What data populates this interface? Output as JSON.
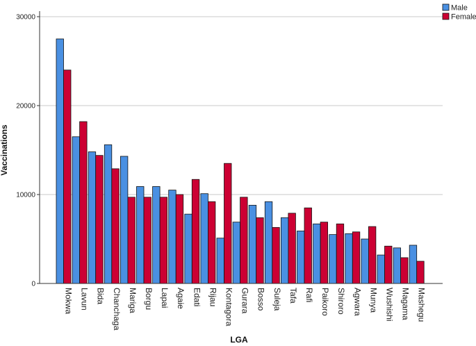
{
  "chart_data": {
    "type": "bar",
    "xlabel": "LGA",
    "ylabel": "Vaccinations",
    "ylim": [
      0,
      30000
    ],
    "yticks": [
      0,
      10000,
      20000,
      30000
    ],
    "grid": true,
    "legend_position": "top-right",
    "categories": [
      "Mokwa",
      "Lavun",
      "Bida",
      "Chanchaga",
      "Mariga",
      "Borgu",
      "Lapai",
      "Agaie",
      "Edati",
      "Rijau",
      "Kontagora",
      "Gurara",
      "Bosso",
      "Suleja",
      "Tafa",
      "Rafi",
      "Paikoro",
      "Shiroro",
      "Agwara",
      "Munya",
      "Wushishi",
      "Magama",
      "Mashegu"
    ],
    "series": [
      {
        "name": "Male",
        "color": "#4a90e2",
        "values": [
          27500,
          16500,
          14800,
          15600,
          14300,
          10900,
          10900,
          10500,
          7800,
          10100,
          5100,
          6900,
          8800,
          9200,
          7400,
          5900,
          6700,
          5500,
          5600,
          5000,
          3200,
          4000,
          4300
        ]
      },
      {
        "name": "Female",
        "color": "#cc0033",
        "values": [
          24000,
          18200,
          14400,
          12900,
          9700,
          9700,
          9700,
          10000,
          11700,
          9200,
          13500,
          9700,
          7400,
          6300,
          7900,
          8500,
          6900,
          6700,
          5800,
          6400,
          4200,
          2900,
          2500
        ]
      }
    ]
  }
}
